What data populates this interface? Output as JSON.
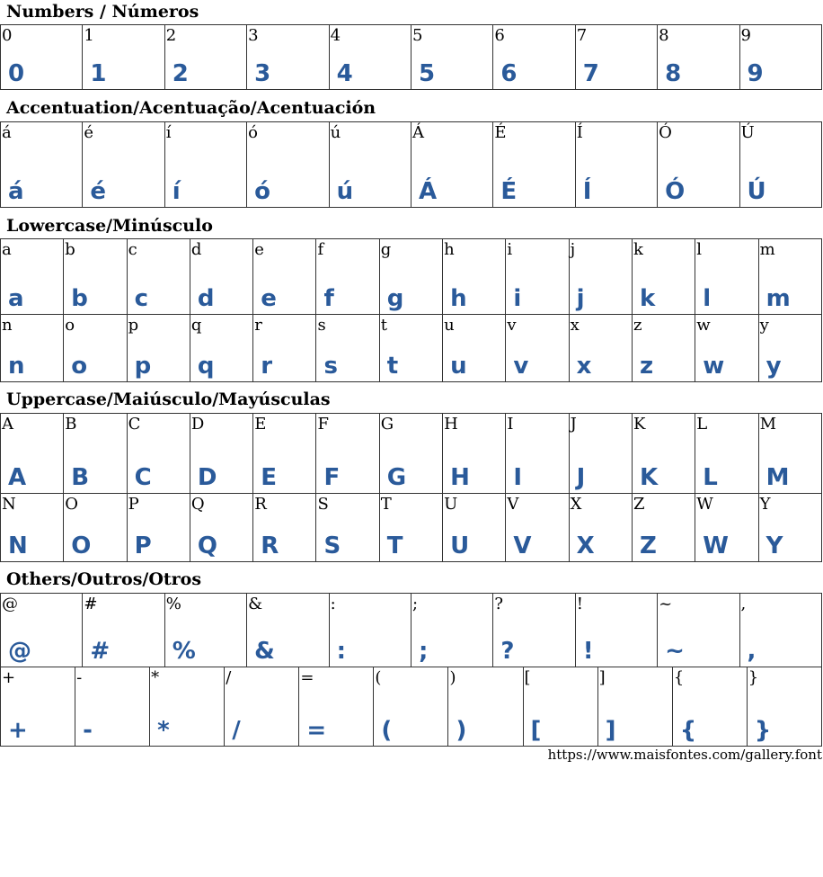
{
  "sections": [
    {
      "title": "Numbers / Números",
      "rows": [
        [
          "0",
          "1",
          "2",
          "3",
          "4",
          "5",
          "6",
          "7",
          "8",
          "9"
        ]
      ]
    },
    {
      "title": "Accentuation/Acentuação/Acentuación",
      "rows": [
        [
          "á",
          "é",
          "í",
          "ó",
          "ú",
          "Á",
          "É",
          "Í",
          "Ó",
          "Ú"
        ]
      ]
    },
    {
      "title": "Lowercase/Minúsculo",
      "rows": [
        [
          "a",
          "b",
          "c",
          "d",
          "e",
          "f",
          "g",
          "h",
          "i",
          "j",
          "k",
          "l",
          "m"
        ],
        [
          "n",
          "o",
          "p",
          "q",
          "r",
          "s",
          "t",
          "u",
          "v",
          "x",
          "z",
          "w",
          "y"
        ]
      ]
    },
    {
      "title": "Uppercase/Maiúsculo/Mayúsculas",
      "rows": [
        [
          "A",
          "B",
          "C",
          "D",
          "E",
          "F",
          "G",
          "H",
          "I",
          "J",
          "K",
          "L",
          "M"
        ],
        [
          "N",
          "O",
          "P",
          "Q",
          "R",
          "S",
          "T",
          "U",
          "V",
          "X",
          "Z",
          "W",
          "Y"
        ]
      ]
    },
    {
      "title": "Others/Outros/Otros",
      "rows": [
        [
          "@",
          "#",
          "%",
          "&",
          ":",
          ";",
          "?",
          "!",
          "~",
          ","
        ],
        [
          "+",
          "-",
          "*",
          "/",
          "=",
          "(",
          ")",
          "[",
          "]",
          "{",
          "}"
        ]
      ]
    }
  ],
  "footer": "https://www.maisfontes.com/gallery.font",
  "colors": {
    "glyph": "#2a5a9a",
    "border": "#333333"
  }
}
